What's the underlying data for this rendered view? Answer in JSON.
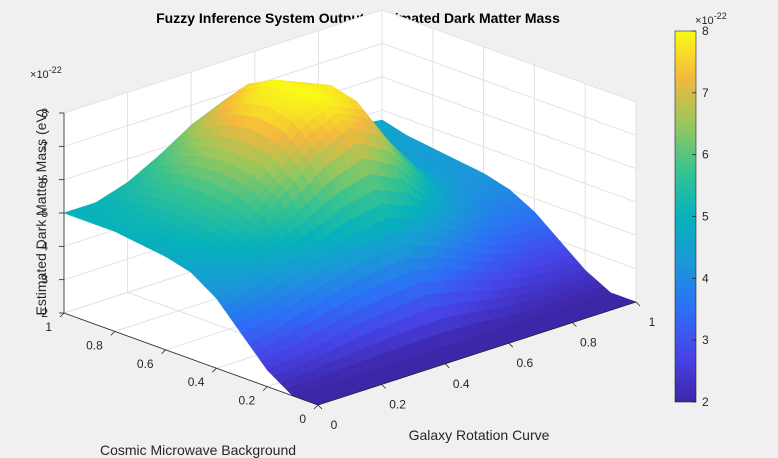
{
  "chart_data": {
    "type": "surface",
    "title": "Fuzzy Inference System Output: Estimated Dark Matter Mass",
    "xlabel": "Galaxy Rotation Curve",
    "ylabel": "Cosmic Microwave Background",
    "zlabel": "Estimated Dark Matter Mass (eV)",
    "xlim": [
      0,
      1
    ],
    "ylim": [
      0,
      1
    ],
    "zlim": [
      2e-22,
      8e-22
    ],
    "x_ticks": [
      "0",
      "0.2",
      "0.4",
      "0.6",
      "0.8",
      "1"
    ],
    "y_ticks": [
      "0",
      "0.2",
      "0.4",
      "0.6",
      "0.8",
      "1"
    ],
    "z_ticks": [
      "2",
      "3",
      "4",
      "5",
      "6",
      "7",
      "8"
    ],
    "z_exponent": "10",
    "z_exponent_power": "-22",
    "colorbar": {
      "ticks": [
        "2",
        "3",
        "4",
        "5",
        "6",
        "7",
        "8"
      ],
      "exponent": "10",
      "exponent_power": "-22",
      "colormap": "parula",
      "range": [
        2e-22,
        8e-22
      ]
    },
    "grid": true,
    "surface_description": {
      "x_grid": [
        0,
        0.1,
        0.2,
        0.3,
        0.4,
        0.5,
        0.6,
        0.7,
        0.8,
        0.9,
        1.0
      ],
      "y_grid": [
        0,
        0.1,
        0.2,
        0.3,
        0.4,
        0.5,
        0.6,
        0.7,
        0.8,
        0.9,
        1.0
      ],
      "z_values_1e22": [
        [
          2.0,
          2.0,
          2.0,
          2.0,
          2.0,
          2.0,
          2.0,
          2.0,
          2.0,
          2.0,
          2.0
        ],
        [
          2.0,
          2.0,
          2.0,
          2.0,
          2.0,
          2.0,
          2.0,
          2.0,
          2.0,
          2.0,
          2.0
        ],
        [
          2.5,
          2.6,
          2.8,
          3.0,
          3.1,
          3.2,
          3.0,
          2.7,
          2.5,
          2.4,
          2.4
        ],
        [
          3.3,
          3.5,
          3.8,
          4.1,
          4.3,
          4.4,
          4.1,
          3.6,
          3.2,
          3.0,
          3.0
        ],
        [
          4.1,
          4.4,
          4.8,
          5.2,
          5.6,
          5.8,
          5.4,
          4.6,
          4.0,
          3.7,
          3.6
        ],
        [
          4.6,
          4.9,
          5.4,
          6.1,
          6.9,
          7.4,
          6.8,
          5.5,
          4.5,
          4.1,
          4.0
        ],
        [
          4.8,
          5.1,
          5.7,
          6.6,
          7.6,
          8.0,
          7.6,
          6.1,
          4.9,
          4.3,
          4.2
        ],
        [
          4.9,
          5.2,
          5.8,
          6.7,
          7.8,
          8.0,
          7.8,
          6.3,
          5.0,
          4.4,
          4.3
        ],
        [
          5.0,
          5.2,
          5.8,
          6.6,
          7.6,
          8.0,
          7.6,
          6.2,
          5.0,
          4.5,
          4.4
        ],
        [
          5.0,
          5.1,
          5.6,
          6.3,
          7.1,
          7.6,
          7.1,
          5.9,
          5.0,
          4.6,
          4.5
        ],
        [
          5.0,
          5.0,
          5.3,
          5.8,
          6.4,
          6.8,
          6.4,
          5.6,
          5.0,
          4.8,
          4.7
        ]
      ],
      "note_axes": "rows index y (Cosmic Microwave Background), columns index x (Galaxy Rotation Curve)"
    }
  }
}
